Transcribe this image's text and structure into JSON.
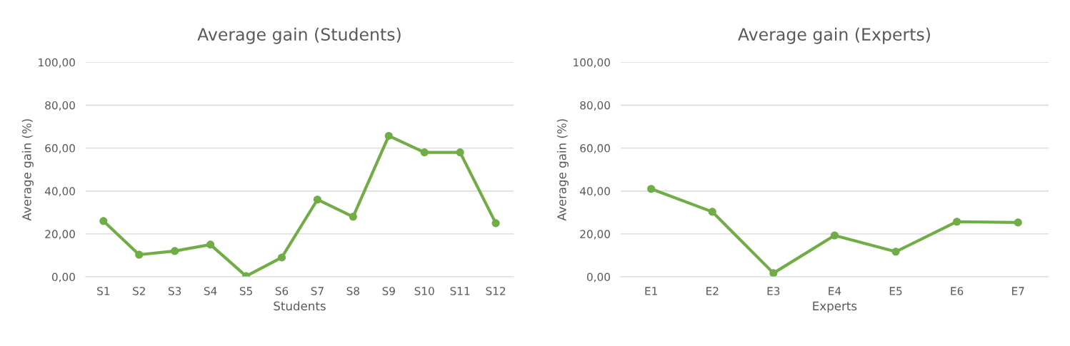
{
  "chart_data": [
    {
      "type": "line",
      "title": "Average gain (Students)",
      "xlabel": "Students",
      "ylabel": "Average gain (%)",
      "categories": [
        "S1",
        "S2",
        "S3",
        "S4",
        "S5",
        "S6",
        "S7",
        "S8",
        "S9",
        "S10",
        "S11",
        "S12"
      ],
      "series": [
        {
          "color": "#70ad47",
          "values": [
            26,
            10.3,
            12,
            15,
            0.3,
            9,
            36,
            28,
            65.7,
            58,
            58,
            25
          ]
        }
      ],
      "ylim": [
        0,
        100
      ],
      "yticks": [
        {
          "value": 0,
          "label": "0,00"
        },
        {
          "value": 20,
          "label": "20,00"
        },
        {
          "value": 40,
          "label": "40,00"
        },
        {
          "value": 60,
          "label": "60,00"
        },
        {
          "value": 80,
          "label": "80,00"
        },
        {
          "value": 100,
          "label": "100,00"
        }
      ],
      "grid": "y",
      "marker": "circle",
      "line_style": "solid"
    },
    {
      "type": "line",
      "title": "Average gain (Experts)",
      "xlabel": "Experts",
      "ylabel": "Average gain (%)",
      "categories": [
        "E1",
        "E2",
        "E3",
        "E4",
        "E5",
        "E6",
        "E7"
      ],
      "series": [
        {
          "color": "#70ad47",
          "values": [
            41,
            30.3,
            1.7,
            19.3,
            11.7,
            25.7,
            25.3
          ]
        }
      ],
      "ylim": [
        0,
        100
      ],
      "yticks": [
        {
          "value": 0,
          "label": "0,00"
        },
        {
          "value": 20,
          "label": "20,00"
        },
        {
          "value": 40,
          "label": "40,00"
        },
        {
          "value": 60,
          "label": "60,00"
        },
        {
          "value": 80,
          "label": "80,00"
        },
        {
          "value": 100,
          "label": "100,00"
        }
      ],
      "grid": "y",
      "marker": "circle",
      "line_style": "solid"
    }
  ]
}
